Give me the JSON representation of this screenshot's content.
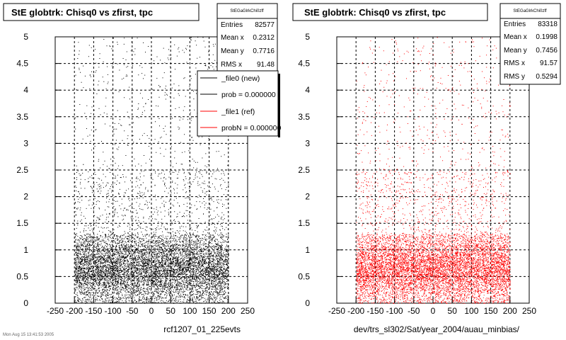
{
  "footer_text": "Mon Aug 15 13:41:53 2005",
  "legend": {
    "entries": [
      {
        "label": "_file0 (new)",
        "color": "#000000"
      },
      {
        "label": "prob = 0.000000",
        "color": "#000000"
      },
      {
        "label": "_file1 (ref)",
        "color": "#ff0000"
      },
      {
        "label": "probN = 0.000000",
        "color": "#ff0000"
      }
    ]
  },
  "chart_data": [
    {
      "type": "scatter",
      "title": "StE globtrk: Chisq0 vs zfirst, tpc",
      "xlabel": "rcf1207_01_225evts",
      "ylabel": "",
      "xlim": [
        -250,
        250
      ],
      "ylim": [
        0,
        5
      ],
      "xticks": [
        "-250",
        "-200",
        "-150",
        "-100",
        "-50",
        "0",
        "50",
        "100",
        "150",
        "200",
        "250"
      ],
      "yticks": [
        "0",
        "0.5",
        "1",
        "1.5",
        "2",
        "2.5",
        "3",
        "3.5",
        "4",
        "4.5",
        "5"
      ],
      "grid": true,
      "color": "#000000",
      "stats": {
        "name": "StEGaGlrkChi0zff",
        "rows": [
          {
            "label": "Entries",
            "value": "82577"
          },
          {
            "label": "Mean x",
            "value": "0.2312"
          },
          {
            "label": "Mean y",
            "value": "0.7716"
          },
          {
            "label": "RMS x",
            "value": "91.48"
          }
        ]
      }
    },
    {
      "type": "scatter",
      "title": "StE globtrk: Chisq0 vs zfirst, tpc",
      "xlabel": "dev/trs_sl302/Sat/year_2004/auau_minbias/",
      "ylabel": "",
      "xlim": [
        -250,
        250
      ],
      "ylim": [
        0,
        5
      ],
      "xticks": [
        "-250",
        "-200",
        "-150",
        "-100",
        "-50",
        "0",
        "50",
        "100",
        "150",
        "200",
        "250"
      ],
      "yticks": [
        "0",
        "0.5",
        "1",
        "1.5",
        "2",
        "2.5",
        "3",
        "3.5",
        "4",
        "4.5",
        "5"
      ],
      "grid": true,
      "color": "#ff0000",
      "stats": {
        "name": "StEGaGlrkChi0zff",
        "rows": [
          {
            "label": "Entries",
            "value": "83318"
          },
          {
            "label": "Mean x",
            "value": "0.1998"
          },
          {
            "label": "Mean y",
            "value": "0.7456"
          },
          {
            "label": "RMS x",
            "value": "91.57"
          },
          {
            "label": "RMS y",
            "value": "0.5294"
          }
        ]
      }
    }
  ]
}
